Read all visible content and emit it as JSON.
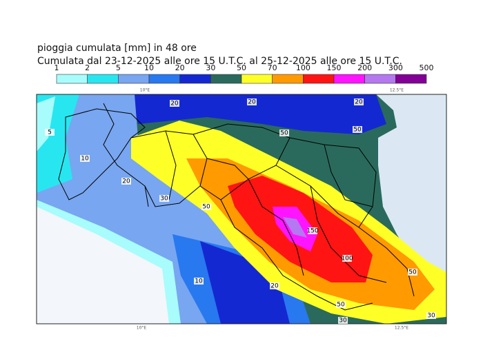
{
  "title": "pioggia cumulata [mm] in 48 ore",
  "subtitle": "Cumulata dal 23-12-2025 alle ore 15 U.T.C. al 25-12-2025 alle ore 15 U.T.C.",
  "legend": {
    "labels": [
      "1",
      "2",
      "5",
      "10",
      "20",
      "30",
      "50",
      "70",
      "100",
      "150",
      "200",
      "300",
      "500"
    ],
    "colors": [
      "#a8fcfc",
      "#28e6f0",
      "#78a6f0",
      "#2878f0",
      "#1428d2",
      "#2a6a5c",
      "#ffff28",
      "#ff9a00",
      "#ff1414",
      "#ff14ff",
      "#b478f0",
      "#820096"
    ]
  },
  "map": {
    "lon_labels": [
      "10°E",
      "12.5°E"
    ],
    "contour_labels": [
      "20",
      "20",
      "20",
      "50",
      "50",
      "5",
      "10",
      "20",
      "30",
      "50",
      "10",
      "20",
      "150",
      "100",
      "50",
      "30",
      "30",
      "50"
    ]
  }
}
